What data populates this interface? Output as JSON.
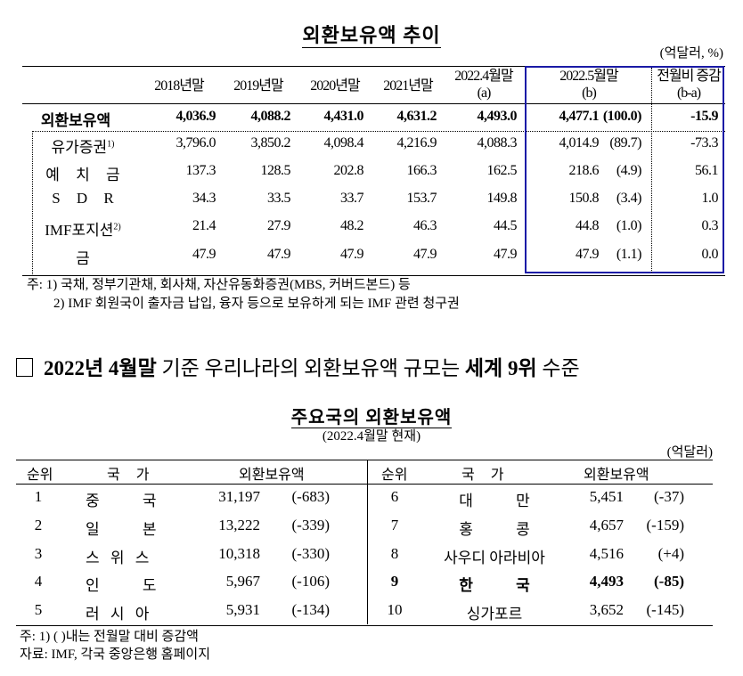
{
  "table1": {
    "title": "외환보유액 추이",
    "unit": "(억달러, %)",
    "headers": [
      {
        "line1": "2018년말",
        "line2": ""
      },
      {
        "line1": "2019년말",
        "line2": ""
      },
      {
        "line1": "2020년말",
        "line2": ""
      },
      {
        "line1": "2021년말",
        "line2": ""
      },
      {
        "line1": "2022.4월말",
        "line2": "(a)"
      },
      {
        "line1": "2022.5월말",
        "line2": "(b)"
      },
      {
        "line1": "전월비 증감",
        "line2": "(b-a)"
      }
    ],
    "rows": [
      {
        "label": "외환보유액",
        "sup": "",
        "bold": true,
        "values": [
          "4,036.9",
          "4,088.2",
          "4,431.0",
          "4,631.2",
          "4,493.0",
          "4,477.1",
          "(100.0)",
          "-15.9"
        ]
      },
      {
        "label": "유가증권",
        "sup": "1)",
        "bold": false,
        "values": [
          "3,796.0",
          "3,850.2",
          "4,098.4",
          "4,216.9",
          "4,088.3",
          "4,014.9",
          "(89.7)",
          "-73.3"
        ]
      },
      {
        "label": "예 치 금",
        "sup": "",
        "bold": false,
        "values": [
          "137.3",
          "128.5",
          "202.8",
          "166.3",
          "162.5",
          "218.6",
          "(4.9)",
          "56.1"
        ]
      },
      {
        "label": "S D R",
        "sup": "",
        "bold": false,
        "values": [
          "34.3",
          "33.5",
          "33.7",
          "153.7",
          "149.8",
          "150.8",
          "(3.4)",
          "1.0"
        ]
      },
      {
        "label": "IMF포지션",
        "sup": "2)",
        "bold": false,
        "values": [
          "21.4",
          "27.9",
          "48.2",
          "46.3",
          "44.5",
          "44.8",
          "(1.0)",
          "0.3"
        ]
      },
      {
        "label": "금",
        "sup": "",
        "bold": false,
        "values": [
          "47.9",
          "47.9",
          "47.9",
          "47.9",
          "47.9",
          "47.9",
          "(1.1)",
          "0.0"
        ]
      }
    ],
    "notes": [
      "주: 1) 국채, 정부기관채, 회사채, 자산유동화증권(MBS, 커버드본드) 등",
      "2) IMF 회원국이 출자금 납입, 융자 등으로 보유하게 되는 IMF 관련 청구권"
    ],
    "highlight_color": "#1a1aa6"
  },
  "headline": {
    "checkbox": "□",
    "part1": "2022년 4월말",
    "part2": " 기준 우리나라의 외환보유액 규모는 ",
    "part3": "세계 9위",
    "part4": " 수준"
  },
  "table2": {
    "title": "주요국의 외환보유액",
    "subtitle": "(2022.4월말 현재)",
    "unit": "(억달러)",
    "headers": {
      "rank": "순위",
      "country": "국 가",
      "reserves": "외환보유액"
    },
    "left": [
      {
        "rank": "1",
        "country": "중 국",
        "value": "31,197",
        "change": "(-683)"
      },
      {
        "rank": "2",
        "country": "일 본",
        "value": "13,222",
        "change": "(-339)"
      },
      {
        "rank": "3",
        "country": "스 위 스",
        "value": "10,318",
        "change": "(-330)"
      },
      {
        "rank": "4",
        "country": "인 도",
        "value": "5,967",
        "change": "(-106)"
      },
      {
        "rank": "5",
        "country": "러 시 아",
        "value": "5,931",
        "change": "(-134)"
      }
    ],
    "right": [
      {
        "rank": "6",
        "country": "대 만",
        "value": "5,451",
        "change": "(-37)",
        "bold": false
      },
      {
        "rank": "7",
        "country": "홍 콩",
        "value": "4,657",
        "change": "(-159)",
        "bold": false
      },
      {
        "rank": "8",
        "country": "사우디 아라비아",
        "value": "4,516",
        "change": "(+4)",
        "bold": false
      },
      {
        "rank": "9",
        "country": "한 국",
        "value": "4,493",
        "change": "(-85)",
        "bold": true
      },
      {
        "rank": "10",
        "country": "싱가포르",
        "value": "3,652",
        "change": "(-145)",
        "bold": false
      }
    ],
    "notes": [
      "주: 1) (   )내는 전월말 대비 증감액",
      "자료: IMF, 각국 중앙은행 홈페이지"
    ]
  }
}
